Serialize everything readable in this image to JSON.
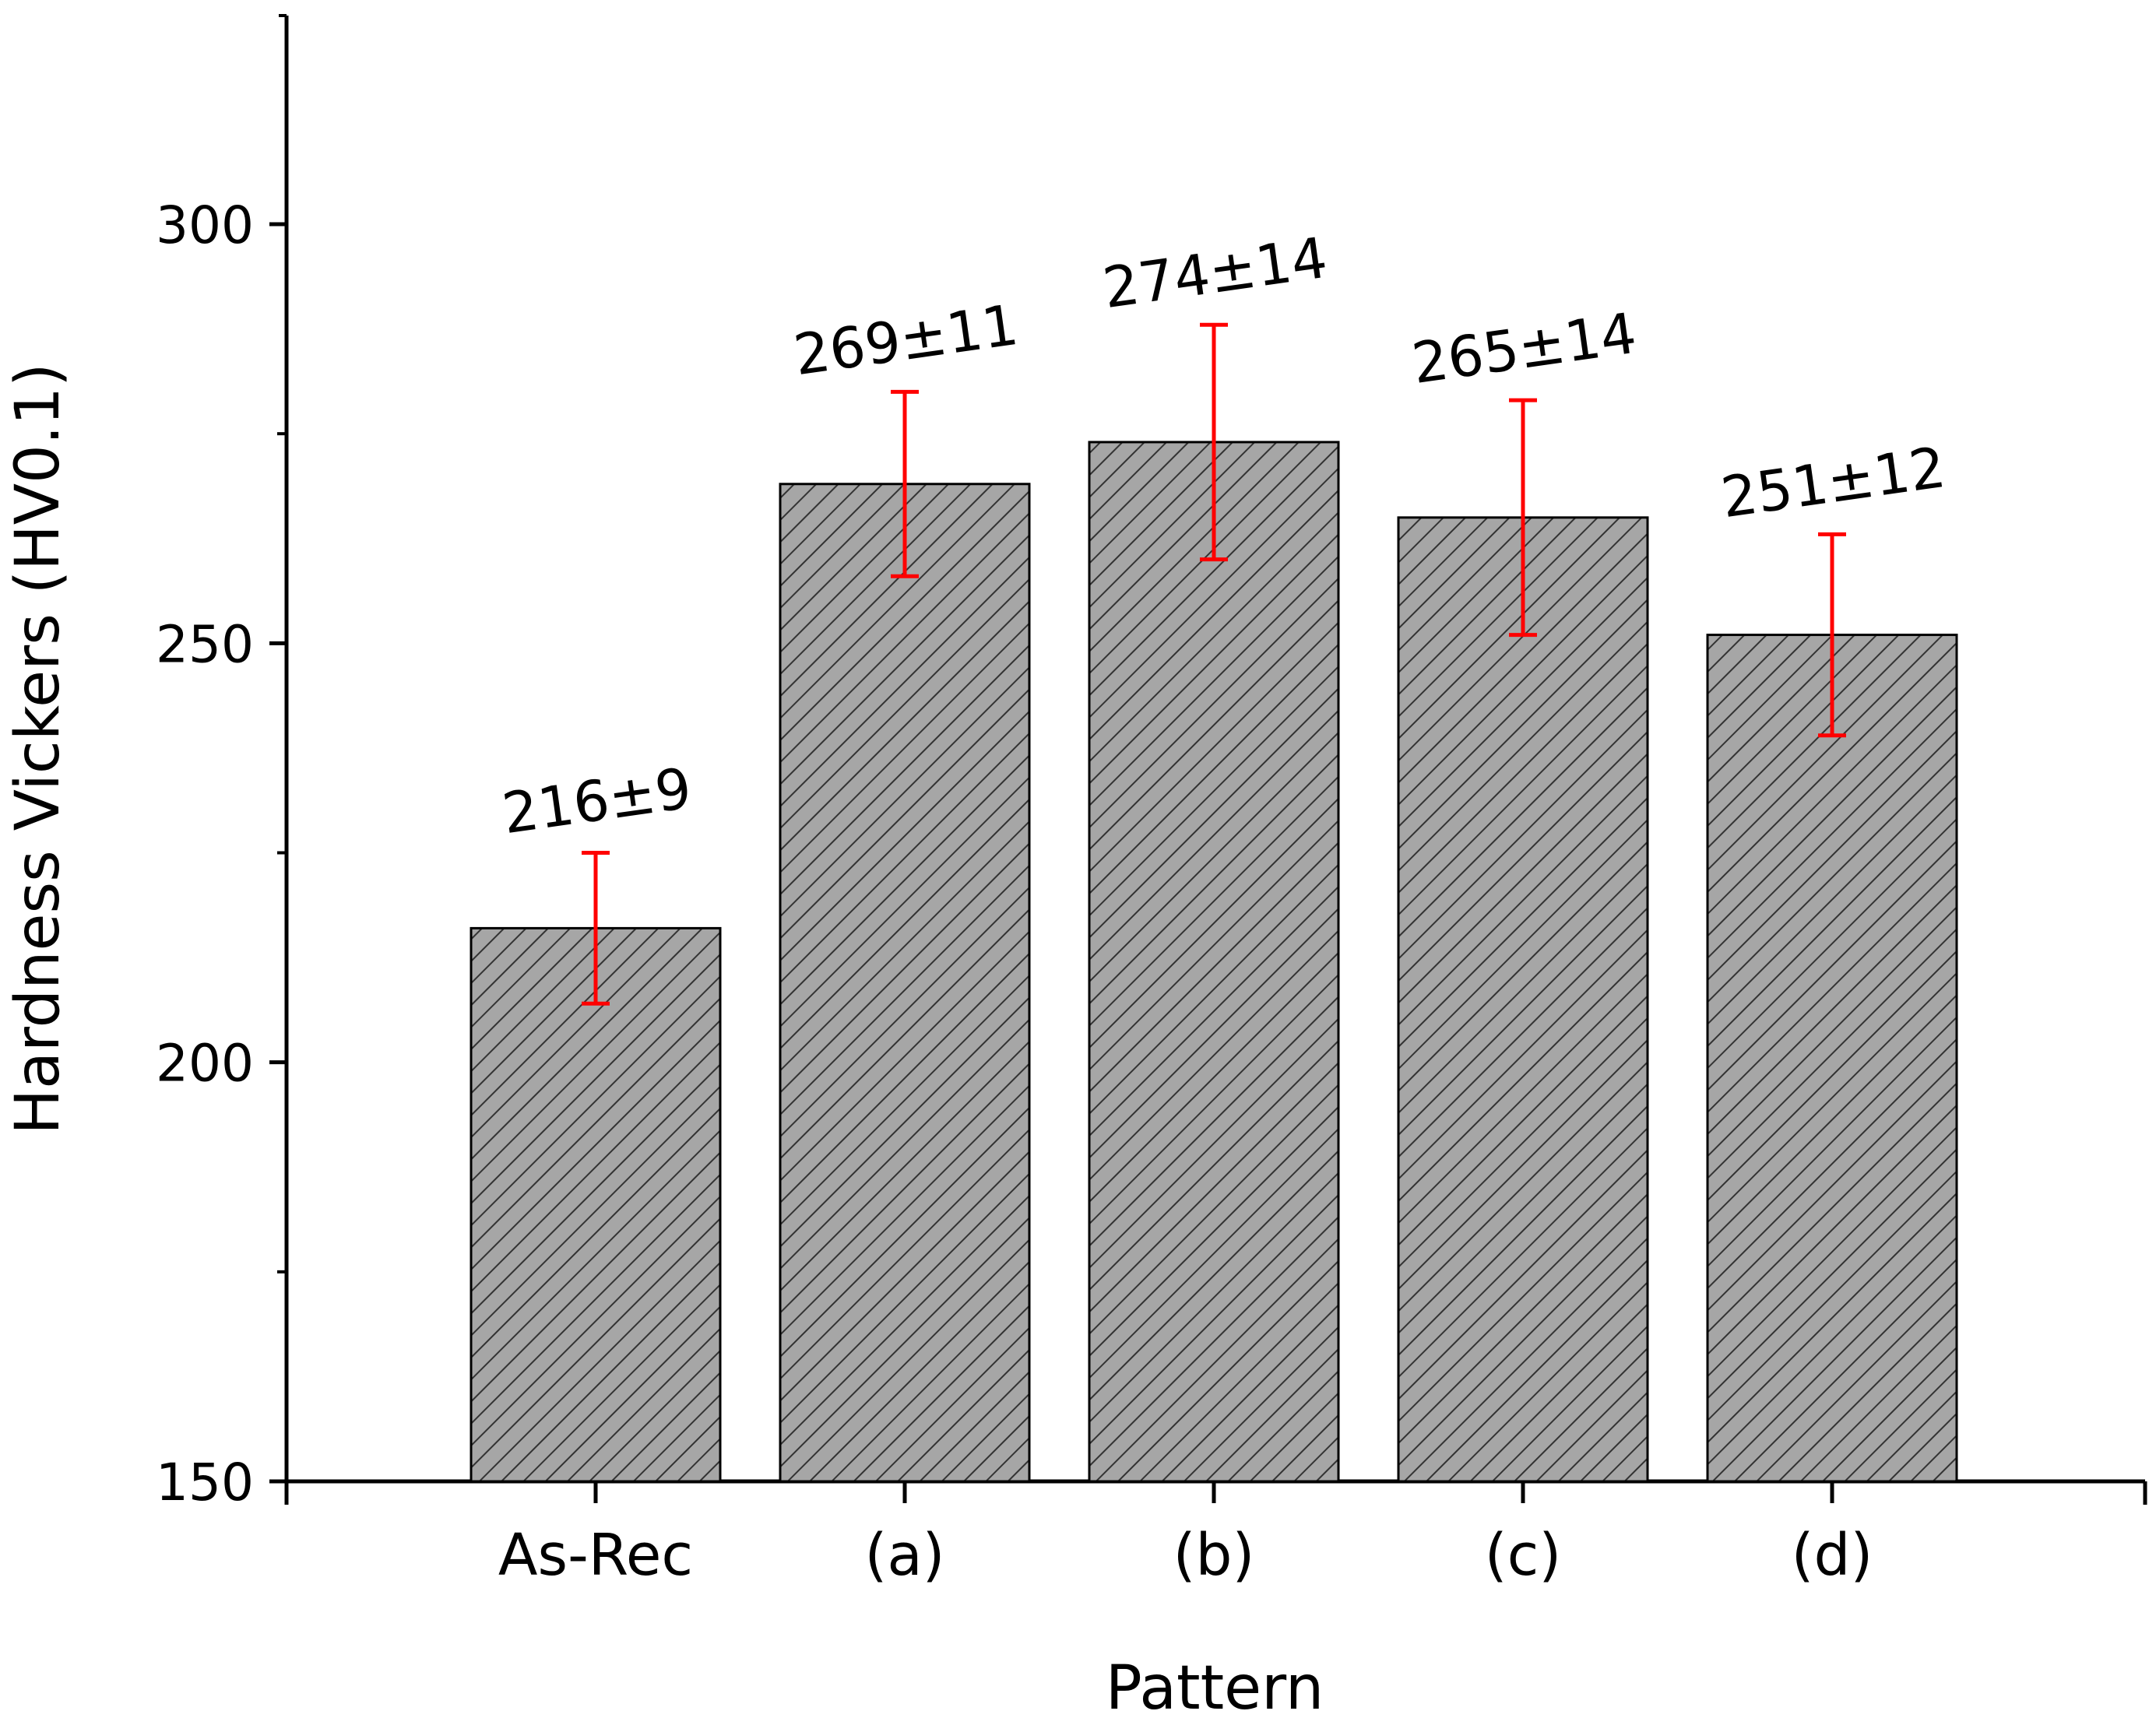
{
  "chart_data": {
    "type": "bar",
    "title": "",
    "xlabel": "Pattern",
    "ylabel": "Hardness Vickers (HV0.1)",
    "categories": [
      "As-Rec",
      "(a)",
      "(b)",
      "(c)",
      "(d)"
    ],
    "values": [
      216,
      269,
      274,
      265,
      251
    ],
    "errors": [
      9,
      11,
      14,
      14,
      12
    ],
    "data_labels": [
      "216±9",
      "269±11",
      "274±14",
      "265±14",
      "251±12"
    ],
    "ylim": [
      150,
      325
    ],
    "yticks": [
      150,
      200,
      250,
      300
    ],
    "yminor_ticks": [
      175,
      225,
      275,
      300,
      325
    ],
    "grid": false,
    "bar_fill": "#a6a6a6",
    "bar_hatch": "diagonal",
    "hatch_color": "#333333",
    "error_bar_color": "#ff0000",
    "axis_color": "#000000"
  }
}
